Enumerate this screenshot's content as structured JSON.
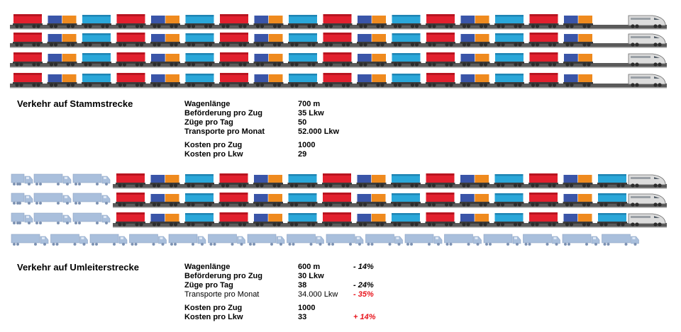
{
  "colors": {
    "wagon_red": "#e2202e",
    "wagon_blue": "#3a55a8",
    "wagon_orange": "#ef8a1e",
    "wagon_cyan": "#2aa7d9",
    "track": "#5a5a5a",
    "truck": "#a9bfdc",
    "alert": "#e8141c"
  },
  "main_route": {
    "title": "Verkehr auf Stammstrecke",
    "rows": [
      {
        "label": "Wagenlänge",
        "value": "700 m"
      },
      {
        "label": "Beförderung pro Zug",
        "value": "35 Lkw"
      },
      {
        "label": "Züge pro Tag",
        "value": "50"
      },
      {
        "label": "Transporte pro Monat",
        "value": "52.000 Lkw"
      },
      {
        "label": "Kosten pro Zug",
        "value": "1000"
      },
      {
        "label": "Kosten pro Lkw",
        "value": "29"
      }
    ]
  },
  "detour_route": {
    "title": "Verkehr auf Umleiterstrecke",
    "rows": [
      {
        "label": "Wagenlänge",
        "value": "600 m",
        "change": "- 14%"
      },
      {
        "label": "Beförderung pro Zug",
        "value": "30 Lkw",
        "change": ""
      },
      {
        "label": "Züge pro Tag",
        "value": "38",
        "change": "- 24%"
      },
      {
        "label": "Transporte pro Monat",
        "value": "34.000 Lkw",
        "change": "- 35%"
      },
      {
        "label": "Kosten pro Zug",
        "value": "1000",
        "change": ""
      },
      {
        "label": "Kosten pro Lkw",
        "value": "33",
        "change": "+ 14%"
      }
    ]
  }
}
